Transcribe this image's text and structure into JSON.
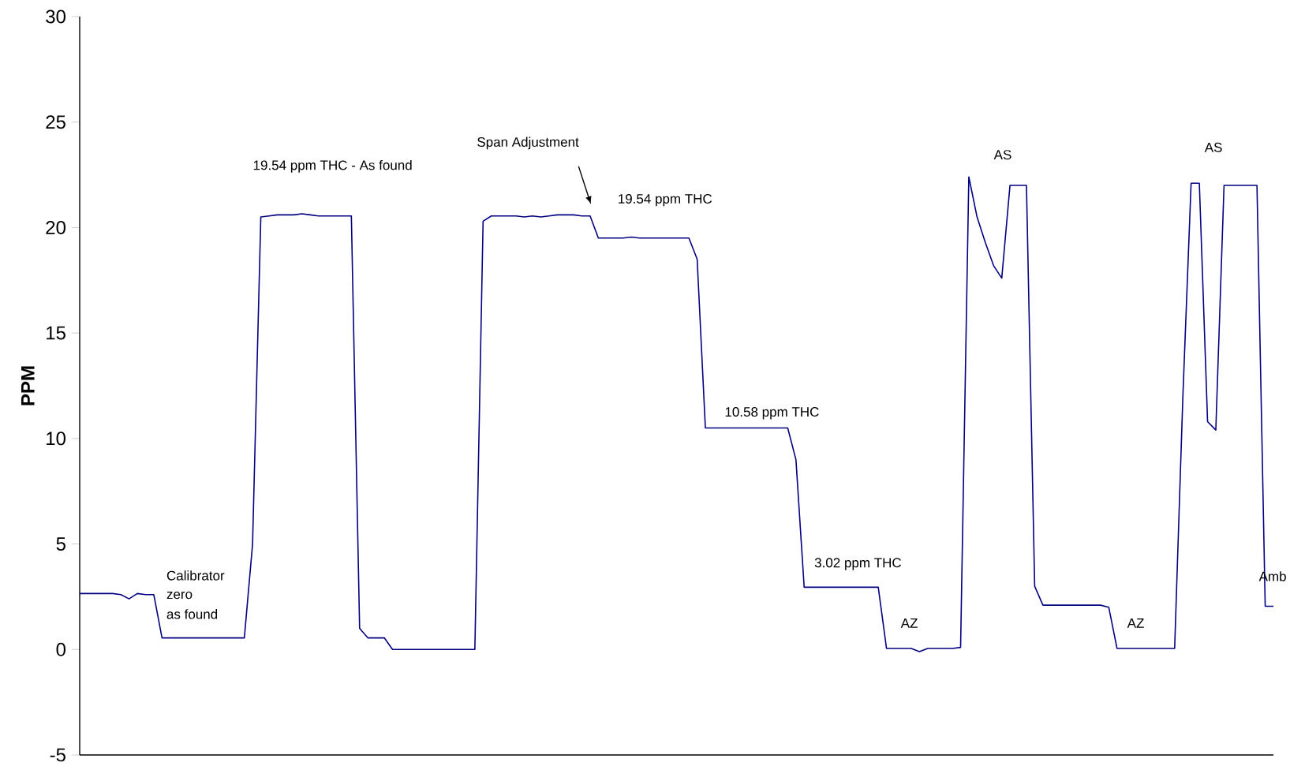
{
  "chart_data": {
    "type": "line",
    "ylabel": "PPM",
    "color": "#000080",
    "ylim": [
      -5,
      30
    ],
    "yticks": [
      -5,
      0,
      5,
      10,
      15,
      20,
      25,
      30
    ],
    "categories": [
      null,
      null,
      null,
      null,
      null,
      null,
      null,
      null,
      null,
      null,
      null,
      null,
      null,
      null,
      null,
      null,
      null,
      null,
      null,
      null,
      null,
      null,
      null,
      null,
      null,
      null,
      null,
      null,
      null,
      null,
      null,
      null,
      null,
      null,
      null,
      null,
      null,
      null,
      null,
      null,
      null,
      null,
      null,
      null,
      null,
      null,
      null,
      null,
      null,
      null,
      null,
      null,
      null,
      null,
      null,
      null,
      null,
      null,
      null,
      null,
      null,
      null,
      null,
      null,
      null,
      null,
      null,
      null,
      null,
      null,
      null,
      null,
      null,
      null,
      null,
      null,
      null,
      null,
      null,
      null,
      null,
      null,
      null,
      null,
      null,
      null,
      null,
      null,
      null,
      null,
      null,
      null,
      null,
      null,
      null,
      null,
      null,
      null,
      null,
      null,
      null,
      null,
      null,
      null,
      null,
      null,
      null,
      null,
      null,
      null,
      null,
      null,
      null,
      null,
      null,
      null,
      null,
      null,
      null,
      null,
      null,
      null,
      null,
      null,
      null,
      null,
      null,
      null,
      null,
      null,
      null,
      null,
      null,
      null,
      null,
      null,
      null,
      null,
      null,
      null,
      null,
      null,
      null,
      null,
      null,
      null
    ],
    "values": [
      2.65,
      2.65,
      2.65,
      2.65,
      2.65,
      2.6,
      2.4,
      2.65,
      2.6,
      2.6,
      0.55,
      0.55,
      0.55,
      0.55,
      0.55,
      0.55,
      0.55,
      0.55,
      0.55,
      0.55,
      0.55,
      5,
      20.5,
      20.55,
      20.6,
      20.6,
      20.6,
      20.65,
      20.6,
      20.55,
      20.55,
      20.55,
      20.55,
      20.55,
      1.0,
      0.55,
      0.55,
      0.55,
      0,
      0,
      0,
      0,
      0,
      0,
      0,
      0,
      0,
      0,
      0,
      20.3,
      20.55,
      20.55,
      20.55,
      20.55,
      20.5,
      20.55,
      20.5,
      20.55,
      20.6,
      20.6,
      20.6,
      20.55,
      20.55,
      19.5,
      19.5,
      19.5,
      19.5,
      19.55,
      19.5,
      19.5,
      19.5,
      19.5,
      19.5,
      19.5,
      19.5,
      18.5,
      10.5,
      10.5,
      10.5,
      10.5,
      10.5,
      10.5,
      10.5,
      10.5,
      10.5,
      10.5,
      10.5,
      9,
      2.95,
      2.95,
      2.95,
      2.95,
      2.95,
      2.95,
      2.95,
      2.95,
      2.95,
      2.95,
      0.05,
      0.05,
      0.05,
      0.05,
      -0.1,
      0.05,
      0.05,
      0.05,
      0.05,
      0.1,
      22.4,
      20.5,
      19.3,
      18.2,
      17.6,
      22.0,
      22.0,
      22.0,
      3,
      2.1,
      2.1,
      2.1,
      2.1,
      2.1,
      2.1,
      2.1,
      2.1,
      2.0,
      0.05,
      0.05,
      0.05,
      0.05,
      0.05,
      0.05,
      0.05,
      0.05,
      12,
      22.1,
      22.1,
      10.8,
      10.4,
      22.0,
      22.0,
      22.0,
      22.0,
      22.0,
      2.05,
      2.05
    ],
    "annotations": [
      "Calibrator",
      "zero",
      "as found",
      "19.54 ppm THC - As found",
      "Span Adjustment",
      "19.54 ppm THC",
      "10.58 ppm THC",
      "3.02 ppm THC",
      "AZ",
      "AS",
      "AZ",
      "AS",
      "Amb"
    ]
  }
}
